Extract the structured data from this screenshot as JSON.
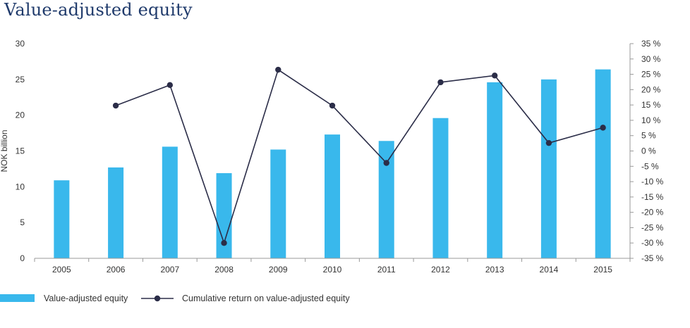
{
  "chart_title": "Value-adjusted equity",
  "colors": {
    "bar": "#39b8ec",
    "line": "#2b2d48",
    "title": "#1f3a6b",
    "axis": "#999999"
  },
  "chart_data": {
    "type": "bar",
    "title": "Value-adjusted equity",
    "categories": [
      "2005",
      "2006",
      "2007",
      "2008",
      "2009",
      "2010",
      "2011",
      "2012",
      "2013",
      "2014",
      "2015"
    ],
    "ylabel": "NOK billion",
    "ylim": [
      0,
      30
    ],
    "y_ticks": [
      "0",
      "5",
      "10",
      "15",
      "20",
      "25",
      "30"
    ],
    "y2lim": [
      -35,
      35
    ],
    "y2_ticks": [
      "-35 %",
      "-30 %",
      "-25 %",
      "-20 %",
      "-15 %",
      "-10 %",
      "-5 %",
      "0 %",
      "5 %",
      "10 %",
      "15 %",
      "20 %",
      "25 %",
      "30 %",
      "35 %"
    ],
    "grid": false,
    "legend_position": "bottom-left",
    "series": [
      {
        "name": "Value-adjusted equity",
        "type": "bar",
        "axis": "left",
        "values": [
          10.9,
          12.7,
          15.6,
          11.9,
          15.2,
          17.3,
          16.4,
          19.6,
          24.6,
          25.0,
          26.4
        ]
      },
      {
        "name": "Cumulative return on value-adjusted equity",
        "type": "line",
        "axis": "right",
        "values": [
          null,
          14.8,
          21.5,
          -30.0,
          26.5,
          14.8,
          -3.9,
          22.4,
          24.6,
          2.6,
          7.6
        ]
      }
    ]
  }
}
